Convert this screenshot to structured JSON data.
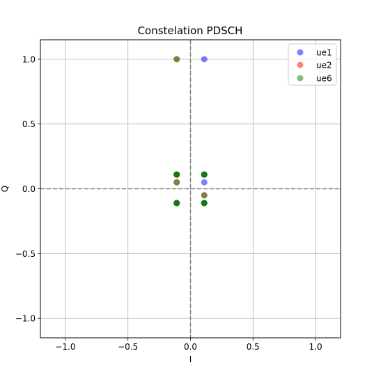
{
  "chart_data": {
    "type": "scatter",
    "title": "Constelation PDSCH",
    "xlabel": "I",
    "ylabel": "Q",
    "xlim": [
      -1.2,
      1.2
    ],
    "ylim": [
      -1.15,
      1.15
    ],
    "x_ticks": [
      -1.0,
      -0.5,
      0.0,
      0.5,
      1.0
    ],
    "x_tick_labels": [
      "−1.0",
      "−0.5",
      "0.0",
      "0.5",
      "1.0"
    ],
    "y_ticks": [
      1.0,
      0.5,
      0.0,
      -0.5,
      -1.0
    ],
    "y_tick_labels": [
      "1.0",
      "0.5",
      "0.0",
      "−0.5",
      "−1.0"
    ],
    "grid": true,
    "reference_lines": {
      "x": 0,
      "y": 0,
      "style": "dashed",
      "color": "#808080"
    },
    "legend_position": "upper right",
    "series": [
      {
        "name": "ue1",
        "color": "#0000ff",
        "alpha": 0.5,
        "points": [
          {
            "x": 0.11,
            "y": 1.0
          },
          {
            "x": 0.11,
            "y": 0.05
          },
          {
            "x": 0.11,
            "y": 0.11
          },
          {
            "x": -0.11,
            "y": 0.11
          },
          {
            "x": 0.11,
            "y": -0.11
          },
          {
            "x": -0.11,
            "y": -0.11
          }
        ]
      },
      {
        "name": "ue2",
        "color": "#ff0000",
        "alpha": 0.5,
        "points": [
          {
            "x": -0.11,
            "y": 1.0
          },
          {
            "x": -0.11,
            "y": 0.05
          },
          {
            "x": 0.11,
            "y": -0.05
          },
          {
            "x": 0.11,
            "y": 0.11
          },
          {
            "x": -0.11,
            "y": 0.11
          },
          {
            "x": 0.11,
            "y": -0.11
          },
          {
            "x": -0.11,
            "y": -0.11
          }
        ]
      },
      {
        "name": "ue6",
        "color": "#008000",
        "alpha": 0.5,
        "points": [
          {
            "x": -0.11,
            "y": 1.0
          },
          {
            "x": -0.11,
            "y": 0.05
          },
          {
            "x": 0.11,
            "y": -0.05
          },
          {
            "x": 0.11,
            "y": 0.11
          },
          {
            "x": -0.11,
            "y": 0.11
          },
          {
            "x": 0.11,
            "y": -0.11
          },
          {
            "x": -0.11,
            "y": -0.11
          },
          {
            "x": 0.11,
            "y": 0.11
          },
          {
            "x": -0.11,
            "y": 0.11
          },
          {
            "x": 0.11,
            "y": -0.11
          },
          {
            "x": -0.11,
            "y": -0.11
          },
          {
            "x": 0.11,
            "y": 0.11
          },
          {
            "x": -0.11,
            "y": 0.11
          },
          {
            "x": 0.11,
            "y": -0.11
          },
          {
            "x": -0.11,
            "y": -0.11
          }
        ]
      }
    ]
  }
}
